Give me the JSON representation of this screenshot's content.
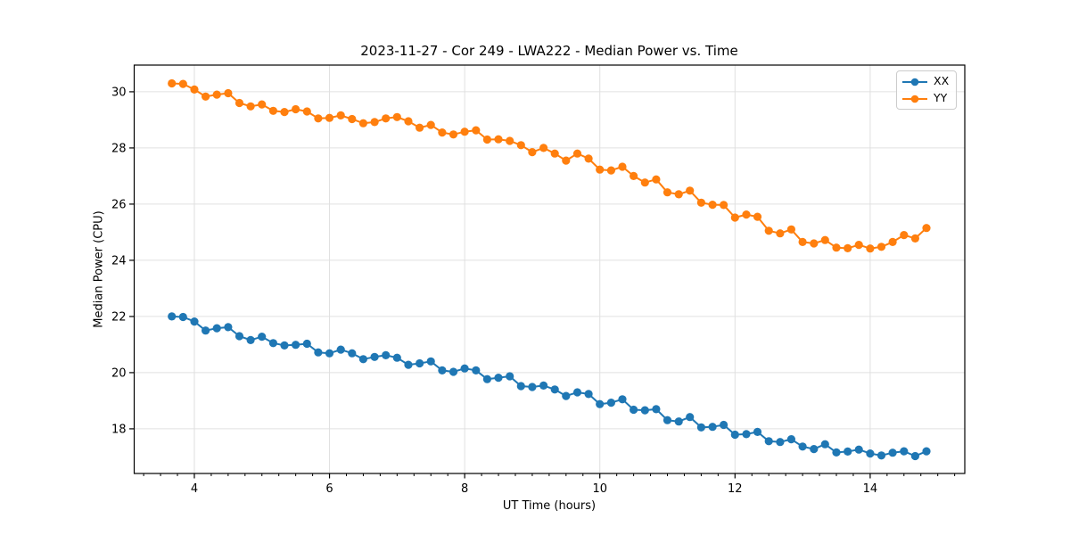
{
  "figure": {
    "title": "2023-11-27 - Cor 249 - LWA222 - Median Power vs. Time",
    "xlabel": "UT Time (hours)",
    "ylabel": "Median Power (CPU)"
  },
  "legend": {
    "position": "upper right",
    "items": [
      {
        "label": "XX",
        "color": "#1f77b4"
      },
      {
        "label": "YY",
        "color": "#ff7f0e"
      }
    ]
  },
  "chart_data": {
    "type": "line",
    "title": "2023-11-27 - Cor 249 - LWA222 - Median Power vs. Time",
    "xlabel": "UT Time (hours)",
    "ylabel": "Median Power (CPU)",
    "grid": true,
    "grid_color": "#e0e0e0",
    "background": "#ffffff",
    "xlim": [
      3.11,
      15.4
    ],
    "ylim": [
      16.41,
      30.95
    ],
    "x_ticks": [
      4,
      6,
      8,
      10,
      12,
      14
    ],
    "y_ticks": [
      18,
      20,
      22,
      24,
      26,
      28,
      30
    ],
    "x_minor_tick_step": 0.25,
    "legend_position": "upper right",
    "marker": "circle",
    "x": [
      3.667,
      3.833,
      4.0,
      4.167,
      4.333,
      4.5,
      4.667,
      4.833,
      5.0,
      5.167,
      5.333,
      5.5,
      5.667,
      5.833,
      6.0,
      6.167,
      6.333,
      6.5,
      6.667,
      6.833,
      7.0,
      7.167,
      7.333,
      7.5,
      7.667,
      7.833,
      8.0,
      8.167,
      8.333,
      8.5,
      8.667,
      8.833,
      9.0,
      9.167,
      9.333,
      9.5,
      9.667,
      9.833,
      10.0,
      10.167,
      10.333,
      10.5,
      10.667,
      10.833,
      11.0,
      11.167,
      11.333,
      11.5,
      11.667,
      11.833,
      12.0,
      12.167,
      12.333,
      12.5,
      12.667,
      12.833,
      13.0,
      13.167,
      13.333,
      13.5,
      13.667,
      13.833,
      14.0,
      14.167,
      14.333,
      14.5,
      14.667,
      14.833
    ],
    "series": [
      {
        "name": "XX",
        "color": "#1f77b4",
        "values": [
          22.0,
          21.98,
          21.82,
          21.5,
          21.58,
          21.62,
          21.3,
          21.16,
          21.28,
          21.05,
          20.97,
          20.99,
          21.03,
          20.72,
          20.69,
          20.82,
          20.69,
          20.48,
          20.56,
          20.62,
          20.53,
          20.28,
          20.33,
          20.4,
          20.08,
          20.03,
          20.15,
          20.08,
          19.77,
          19.82,
          19.87,
          19.52,
          19.49,
          19.54,
          19.4,
          19.17,
          19.3,
          19.24,
          18.88,
          18.93,
          19.05,
          18.68,
          18.66,
          18.7,
          18.31,
          18.26,
          18.42,
          18.05,
          18.07,
          18.14,
          17.79,
          17.81,
          17.89,
          17.56,
          17.53,
          17.63,
          17.37,
          17.28,
          17.45,
          17.16,
          17.19,
          17.26,
          17.12,
          17.05,
          17.15,
          17.2,
          17.03,
          17.2
        ]
      },
      {
        "name": "YY",
        "color": "#ff7f0e",
        "values": [
          30.3,
          30.28,
          30.08,
          29.83,
          29.9,
          29.95,
          29.6,
          29.48,
          29.55,
          29.32,
          29.28,
          29.38,
          29.3,
          29.05,
          29.07,
          29.16,
          29.03,
          28.88,
          28.92,
          29.05,
          29.1,
          28.95,
          28.72,
          28.82,
          28.55,
          28.48,
          28.58,
          28.63,
          28.3,
          28.31,
          28.25,
          28.1,
          27.85,
          28.0,
          27.8,
          27.55,
          27.8,
          27.62,
          27.23,
          27.2,
          27.33,
          27.0,
          26.77,
          26.88,
          26.42,
          26.35,
          26.48,
          26.05,
          25.98,
          25.97,
          25.52,
          25.63,
          25.55,
          25.05,
          24.96,
          25.1,
          24.65,
          24.6,
          24.72,
          24.45,
          24.43,
          24.55,
          24.42,
          24.48,
          24.65,
          24.9,
          24.78,
          25.15
        ]
      }
    ]
  }
}
